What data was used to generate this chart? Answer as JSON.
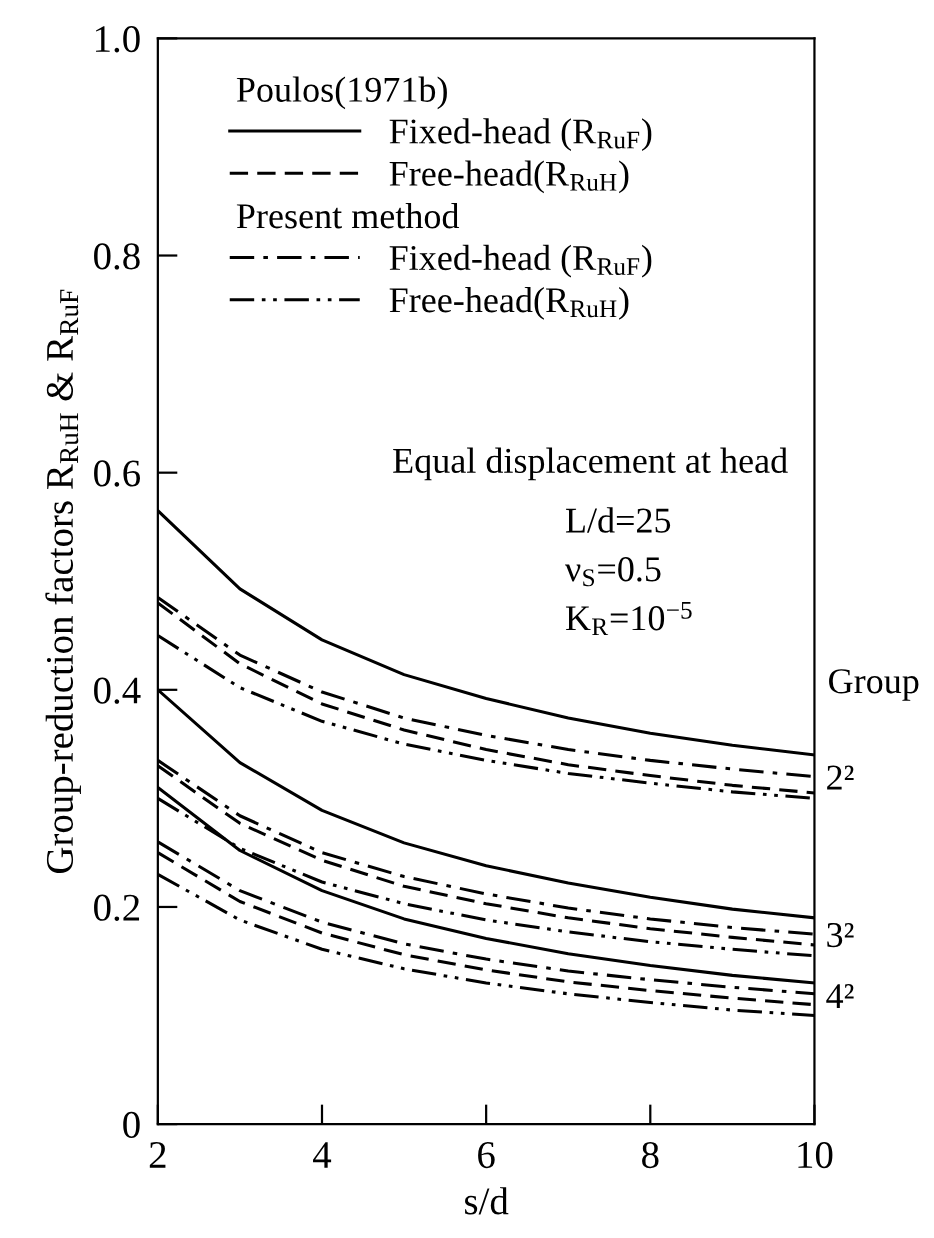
{
  "chart_data": {
    "type": "line",
    "xlabel": "s/d",
    "ylabel": "Group-reduction factors R$_{RuH}$ & R$_{RuF}$",
    "x": [
      2,
      3,
      4,
      5,
      6,
      7,
      8,
      9,
      10
    ],
    "xlim": [
      2,
      10
    ],
    "xticks": [
      2,
      4,
      6,
      8,
      10
    ],
    "ylim": [
      0,
      1.0
    ],
    "yticks": [
      0,
      {
        "value": 0.2,
        "label": "0.2"
      },
      {
        "value": 0.4,
        "label": "0.4"
      },
      {
        "value": 0.6,
        "label": "0.6"
      },
      {
        "value": 0.8,
        "label": "0.8"
      },
      {
        "value": 1.0,
        "label": "1.0"
      }
    ],
    "grid": false,
    "legend": "top left",
    "marker": "none",
    "series": [
      {
        "name": "Fixed-head (R$_{RuF}$)",
        "color": "#000000",
        "line_style": "solid",
        "values": [
          0.565,
          0.493,
          0.446,
          0.414,
          0.392,
          0.374,
          0.36,
          0.349,
          0.34
        ]
      },
      {
        "name": "Free-head(R$_{RuH}$)",
        "color": "#000000",
        "line_style": "dashed",
        "values": [
          0.48,
          0.424,
          0.387,
          0.363,
          0.345,
          0.331,
          0.321,
          0.312,
          0.305
        ]
      },
      {
        "name": "Fixed-head (R$_{RuF}$)",
        "color": "#000000",
        "line_style": "dashdot",
        "values": [
          0.485,
          0.432,
          0.398,
          0.374,
          0.358,
          0.345,
          0.335,
          0.327,
          0.32
        ]
      },
      {
        "name": "Free-head(R$_{RuH}$)",
        "color": "#000000",
        "line_style": "dashdotdot",
        "values": [
          0.45,
          0.402,
          0.371,
          0.35,
          0.335,
          0.323,
          0.314,
          0.306,
          0.3
        ]
      },
      {
        "color": "#000000",
        "line_style": "solid",
        "values": [
          0.4,
          0.333,
          0.289,
          0.259,
          0.238,
          0.222,
          0.209,
          0.198,
          0.19
        ]
      },
      {
        "color": "#000000",
        "line_style": "dashed",
        "values": [
          0.33,
          0.277,
          0.243,
          0.219,
          0.203,
          0.19,
          0.18,
          0.172,
          0.165
        ]
      },
      {
        "color": "#000000",
        "line_style": "dashdot",
        "values": [
          0.335,
          0.284,
          0.25,
          0.228,
          0.212,
          0.199,
          0.189,
          0.181,
          0.175
        ]
      },
      {
        "color": "#000000",
        "line_style": "dashdotdot",
        "values": [
          0.3,
          0.254,
          0.223,
          0.203,
          0.188,
          0.177,
          0.168,
          0.161,
          0.155
        ]
      },
      {
        "color": "#000000",
        "line_style": "solid",
        "values": [
          0.31,
          0.252,
          0.215,
          0.189,
          0.171,
          0.157,
          0.146,
          0.137,
          0.13
        ]
      },
      {
        "color": "#000000",
        "line_style": "dashed",
        "values": [
          0.25,
          0.205,
          0.176,
          0.156,
          0.142,
          0.131,
          0.123,
          0.116,
          0.11
        ]
      },
      {
        "color": "#000000",
        "line_style": "dashdot",
        "values": [
          0.26,
          0.215,
          0.186,
          0.166,
          0.152,
          0.141,
          0.133,
          0.126,
          0.12
        ]
      },
      {
        "color": "#000000",
        "line_style": "dashdotdot",
        "values": [
          0.23,
          0.188,
          0.161,
          0.143,
          0.13,
          0.12,
          0.112,
          0.105,
          0.1
        ]
      }
    ],
    "annotations": [
      "Poulos(1971b)",
      "Present method",
      "Equal displacement at head",
      "L/d=25",
      "ν$_{S}$=0.5",
      "K$_{R}$=10$^{−5}$",
      "Group",
      "2²",
      "3²",
      "4²"
    ]
  }
}
